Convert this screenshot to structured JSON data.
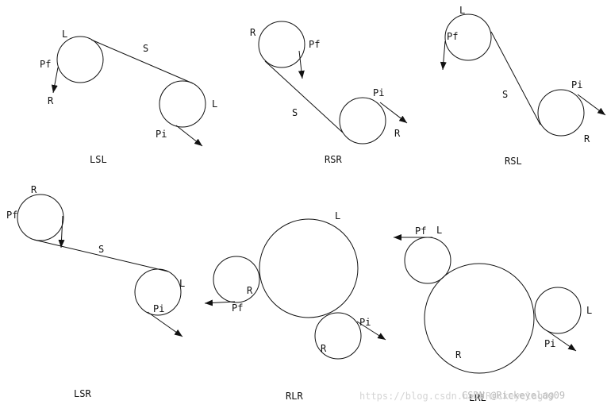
{
  "diagrams": [
    {
      "name": "lsl",
      "caption": "LSL",
      "l1": "L",
      "l2": "L",
      "pf": "Pf",
      "pi": "Pi",
      "s": "S",
      "r": "R"
    },
    {
      "name": "rsr",
      "caption": "RSR",
      "r1": "R",
      "r2": "R",
      "pf": "Pf",
      "pi": "Pi",
      "s": "S"
    },
    {
      "name": "rsl",
      "caption": "RSL",
      "l": "L",
      "r": "R",
      "pf": "Pf",
      "pi": "Pi",
      "s": "S"
    },
    {
      "name": "lsr",
      "caption": "LSR",
      "r": "R",
      "l": "L",
      "pf": "Pf",
      "pi": "Pi",
      "s": "S"
    },
    {
      "name": "rlr",
      "caption": "RLR",
      "r1": "R",
      "l": "L",
      "r2": "R",
      "pf": "Pf",
      "pi": "Pi"
    },
    {
      "name": "lrl",
      "caption": "LRL",
      "l1": "L",
      "r": "R",
      "l2": "L",
      "pf": "Pf",
      "pi": "Pi"
    }
  ],
  "watermark": {
    "url": "https://blog.csdn.net/Rickeyelag09",
    "author": "CSDN @Rickeyelag09"
  }
}
